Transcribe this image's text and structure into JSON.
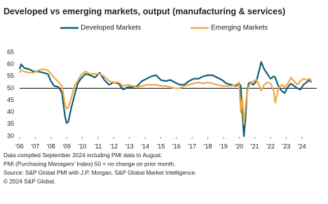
{
  "chart_data": {
    "type": "line",
    "title": "Developed vs emerging markets, output (manufacturing & services)",
    "x": [
      2006.0,
      2006.1,
      2006.3,
      2006.6,
      2006.9,
      2007.2,
      2007.5,
      2007.8,
      2008.0,
      2008.2,
      2008.5,
      2008.7,
      2008.8,
      2008.9,
      2009.0,
      2009.1,
      2009.3,
      2009.5,
      2009.7,
      2009.9,
      2010.2,
      2010.5,
      2010.8,
      2011.1,
      2011.4,
      2011.7,
      2012.0,
      2012.3,
      2012.6,
      2012.9,
      2013.2,
      2013.5,
      2013.8,
      2014.1,
      2014.4,
      2014.7,
      2015.0,
      2015.3,
      2015.6,
      2015.9,
      2016.2,
      2016.5,
      2016.8,
      2017.1,
      2017.4,
      2017.7,
      2018.0,
      2018.3,
      2018.6,
      2018.9,
      2019.2,
      2019.5,
      2019.8,
      2020.0,
      2020.1,
      2020.2,
      2020.3,
      2020.4,
      2020.5,
      2020.6,
      2020.7,
      2020.9,
      2021.1,
      2021.3,
      2021.4,
      2021.6,
      2021.8,
      2022.0,
      2022.2,
      2022.3,
      2022.5,
      2022.7,
      2022.9,
      2023.1,
      2023.3,
      2023.5,
      2023.7,
      2023.9,
      2024.1,
      2024.3,
      2024.5,
      2024.6
    ],
    "series": [
      {
        "name": "Developed Markets",
        "color": "#0d5e78",
        "values": [
          58,
          60,
          58.5,
          58,
          57,
          57,
          56.5,
          56,
          53,
          51,
          50.5,
          48,
          43,
          38,
          35.5,
          36,
          42,
          47,
          52,
          54,
          56,
          55.5,
          54.5,
          56.5,
          53.5,
          51.5,
          52.5,
          52,
          49.5,
          50.5,
          50.5,
          51,
          53,
          54,
          55,
          55.5,
          53.5,
          53,
          53.5,
          52.5,
          51.5,
          51.5,
          53,
          54,
          54,
          55,
          55.5,
          55.5,
          54.5,
          53.5,
          52,
          51.5,
          51,
          52,
          51,
          40,
          30,
          37,
          48,
          52,
          52.5,
          51.5,
          53,
          58,
          61,
          58,
          56,
          54,
          55,
          54.5,
          51,
          49,
          48,
          50.5,
          52,
          51,
          50,
          49.5,
          51.5,
          52.5,
          53.5,
          52.5
        ]
      },
      {
        "name": "Emerging Markets",
        "color": "#f0a844",
        "values": [
          56.5,
          57.5,
          57,
          56.5,
          56.5,
          57.5,
          58,
          57.5,
          56,
          54.5,
          52.5,
          51,
          47,
          43,
          41.5,
          42,
          46,
          51,
          53,
          55.5,
          57,
          56,
          56,
          56,
          55,
          53,
          52.5,
          52.5,
          51,
          51.5,
          51,
          50.5,
          51,
          51.5,
          51.5,
          51.5,
          51,
          51,
          50.5,
          50,
          50,
          51,
          51.5,
          52,
          52.5,
          52,
          52.5,
          52,
          51.5,
          51,
          51,
          51,
          51.5,
          52.5,
          40,
          46,
          35,
          42,
          48,
          50.5,
          52,
          53,
          53.5,
          51,
          49,
          51.5,
          52.5,
          52,
          49,
          44,
          50,
          51.5,
          50.5,
          52,
          54.5,
          53,
          51.5,
          53,
          54,
          53.5,
          54,
          53
        ]
      }
    ],
    "xlim": [
      2006,
      2024.95
    ],
    "xticks": [
      {
        "value": 2006,
        "label": "'06"
      },
      {
        "value": 2007,
        "label": "'07"
      },
      {
        "value": 2008,
        "label": "'08"
      },
      {
        "value": 2009,
        "label": "'09"
      },
      {
        "value": 2010,
        "label": "'10"
      },
      {
        "value": 2011,
        "label": "'11"
      },
      {
        "value": 2012,
        "label": "'12"
      },
      {
        "value": 2013,
        "label": "'13"
      },
      {
        "value": 2014,
        "label": "'14"
      },
      {
        "value": 2015,
        "label": "'15"
      },
      {
        "value": 2016,
        "label": "'16"
      },
      {
        "value": 2017,
        "label": "'17"
      },
      {
        "value": 2018,
        "label": "'18"
      },
      {
        "value": 2019,
        "label": "'19"
      },
      {
        "value": 2020,
        "label": "'20"
      },
      {
        "value": 2021,
        "label": "'21"
      },
      {
        "value": 2022,
        "label": "'22"
      },
      {
        "value": 2023,
        "label": "'23"
      },
      {
        "value": 2024,
        "label": "'24"
      }
    ],
    "ylim": [
      30,
      65
    ],
    "yticks": [
      30,
      35,
      40,
      45,
      50,
      55,
      60,
      65
    ],
    "reference_line": 50,
    "notes": [
      "Data compiled September 2024 including PMI data to August.",
      "PMI (Purchasing Managers' Index) 50 = no change on prior month.",
      "Source: S&P Global PMI with J.P. Morgan, S&P Global Market Intelligence.",
      "© 2024 S&P Global."
    ]
  }
}
